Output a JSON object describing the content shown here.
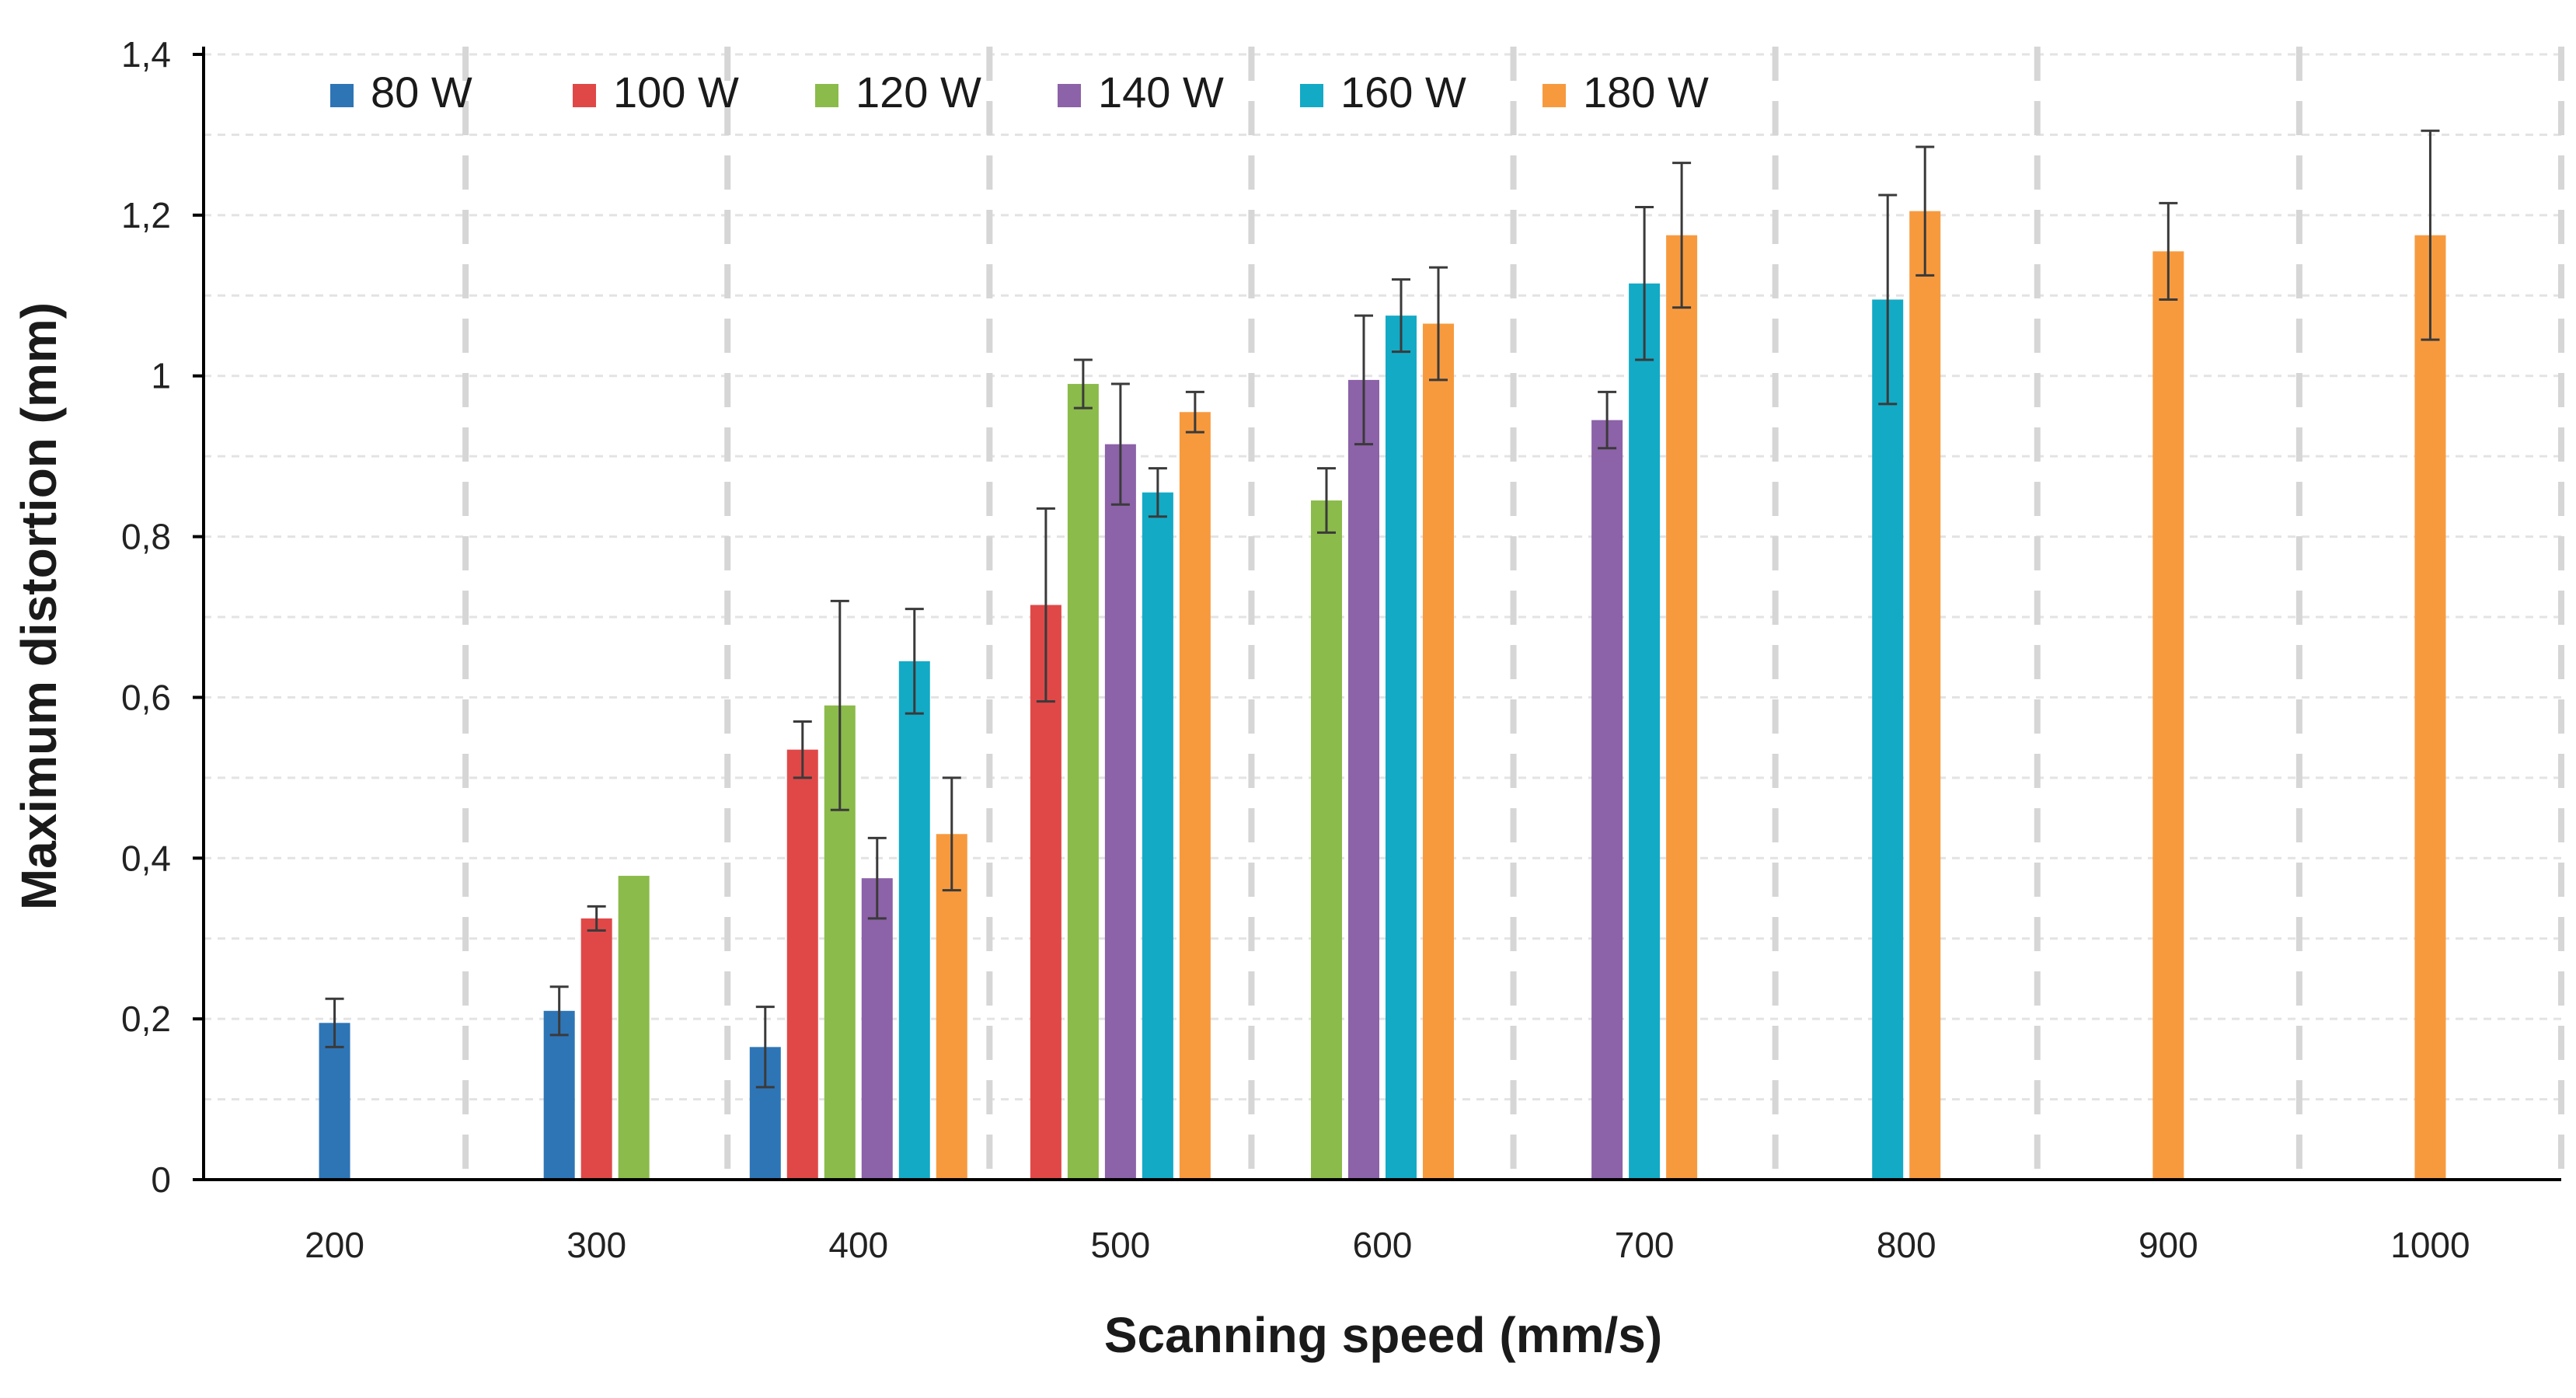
{
  "chart_data": {
    "type": "bar",
    "title": "",
    "xlabel": "Scanning speed (mm/s)",
    "ylabel": "Maximum distortion (mm)",
    "categories": [
      "200",
      "300",
      "400",
      "500",
      "600",
      "700",
      "800",
      "900",
      "1000"
    ],
    "ylim": [
      0,
      1.4
    ],
    "yticks": [
      0,
      0.2,
      0.4,
      0.6,
      0.8,
      1.0,
      1.2,
      1.4
    ],
    "ytick_labels": [
      "0",
      "0,2",
      "0,4",
      "0,6",
      "0,8",
      "1",
      "1,2",
      "1,4"
    ],
    "legend_position": "top-left",
    "grid": {
      "horizontal": "dashed",
      "category_separators": "dashed"
    },
    "error_bars": true,
    "series": [
      {
        "name": "80 W",
        "color": "#2E75B6",
        "values": [
          0.195,
          0.21,
          0.165,
          null,
          null,
          null,
          null,
          null,
          null
        ],
        "errors": [
          0.03,
          0.03,
          0.05,
          null,
          null,
          null,
          null,
          null,
          null
        ]
      },
      {
        "name": "100 W",
        "color": "#E04848",
        "values": [
          null,
          0.325,
          0.535,
          0.715,
          null,
          null,
          null,
          null,
          null
        ],
        "errors": [
          null,
          0.015,
          0.035,
          0.12,
          null,
          null,
          null,
          null,
          null
        ]
      },
      {
        "name": "120 W",
        "color": "#8BBB4A",
        "values": [
          null,
          0.378,
          0.59,
          0.99,
          0.845,
          null,
          null,
          null,
          null
        ],
        "errors": [
          null,
          0.0,
          0.13,
          0.03,
          0.04,
          null,
          null,
          null,
          null
        ]
      },
      {
        "name": "140 W",
        "color": "#8C62A8",
        "values": [
          null,
          null,
          0.375,
          0.915,
          0.995,
          0.945,
          null,
          null,
          null
        ],
        "errors": [
          null,
          null,
          0.05,
          0.075,
          0.08,
          0.035,
          null,
          null,
          null
        ]
      },
      {
        "name": "160 W",
        "color": "#13AAC6",
        "values": [
          null,
          null,
          0.645,
          0.855,
          1.075,
          1.115,
          1.095,
          null,
          null
        ],
        "errors": [
          null,
          null,
          0.065,
          0.03,
          0.045,
          0.095,
          0.13,
          null,
          null
        ]
      },
      {
        "name": "180 W",
        "color": "#F79A3E",
        "values": [
          null,
          null,
          0.43,
          0.955,
          1.065,
          1.175,
          1.205,
          1.155,
          1.175
        ],
        "errors": [
          null,
          null,
          0.07,
          0.025,
          0.07,
          0.09,
          0.08,
          0.06,
          0.13
        ]
      }
    ]
  }
}
